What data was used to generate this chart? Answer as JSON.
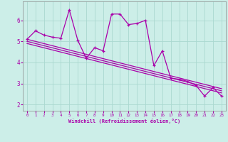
{
  "xlabel": "Windchill (Refroidissement éolien,°C)",
  "bg_color": "#cceee8",
  "grid_color": "#aad8d0",
  "line_color": "#aa00aa",
  "xlim": [
    -0.5,
    23.5
  ],
  "ylim": [
    1.7,
    6.9
  ],
  "yticks": [
    2,
    3,
    4,
    5,
    6
  ],
  "xticks": [
    0,
    1,
    2,
    3,
    4,
    5,
    6,
    7,
    8,
    9,
    10,
    11,
    12,
    13,
    14,
    15,
    16,
    17,
    18,
    19,
    20,
    21,
    22,
    23
  ],
  "zigzag_x": [
    0,
    1,
    2,
    3,
    4,
    5,
    6,
    7,
    8,
    9,
    10,
    11,
    12,
    13,
    14,
    15,
    16,
    17,
    18,
    19,
    20,
    21,
    22,
    23
  ],
  "zigzag_y": [
    5.1,
    5.5,
    5.3,
    5.2,
    5.15,
    6.5,
    5.05,
    4.2,
    4.7,
    4.55,
    6.3,
    6.3,
    5.8,
    5.85,
    6.0,
    3.85,
    4.55,
    3.25,
    3.2,
    3.1,
    2.9,
    2.4,
    2.8,
    2.4
  ],
  "trend1_x": [
    0,
    23
  ],
  "trend1_y": [
    5.1,
    2.75
  ],
  "trend2_x": [
    0,
    23
  ],
  "trend2_y": [
    5.0,
    2.65
  ],
  "trend3_x": [
    0,
    23
  ],
  "trend3_y": [
    4.9,
    2.55
  ]
}
